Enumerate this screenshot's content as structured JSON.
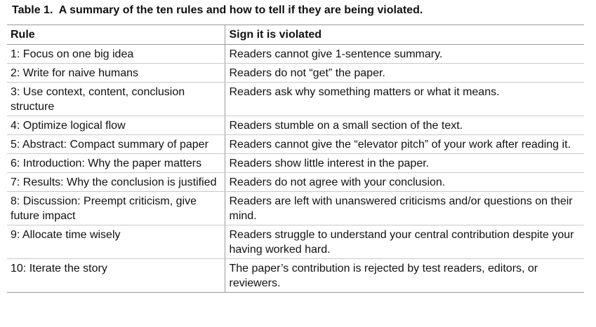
{
  "caption": {
    "label": "Table 1.",
    "text": "A summary of the ten rules and how to tell if they are being violated."
  },
  "table": {
    "headers": [
      "Rule",
      "Sign it is violated"
    ],
    "rows": [
      {
        "rule": "1: Focus on one big idea",
        "sign": "Readers cannot give 1-sentence summary."
      },
      {
        "rule": "2: Write for naive humans",
        "sign": "Readers do not “get” the paper."
      },
      {
        "rule": "3: Use context, content, conclusion structure",
        "sign": "Readers ask why something matters or what it means."
      },
      {
        "rule": "4: Optimize logical flow",
        "sign": "Readers stumble on a small section of the text."
      },
      {
        "rule": "5: Abstract: Compact summary of paper",
        "sign": "Readers cannot give the “elevator pitch” of your work after reading it."
      },
      {
        "rule": "6: Introduction: Why the paper matters",
        "sign": "Readers show little interest in the paper."
      },
      {
        "rule": "7: Results: Why the conclusion is justified",
        "sign": "Readers do not agree with your conclusion."
      },
      {
        "rule": "8: Discussion: Preempt criticism, give future impact",
        "sign": "Readers are left with unanswered criticisms and/or questions on their mind."
      },
      {
        "rule": "9: Allocate time wisely",
        "sign": "Readers struggle to understand your central contribution despite your having worked hard."
      },
      {
        "rule": "10: Iterate the story",
        "sign": "The paper’s contribution is rejected by test readers, editors, or reviewers."
      }
    ]
  }
}
